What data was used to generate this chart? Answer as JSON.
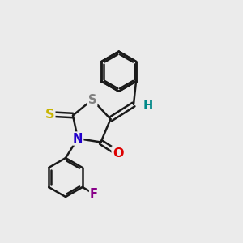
{
  "bg_color": "#ebebeb",
  "bond_color": "#1a1a1a",
  "bond_width": 1.8,
  "dbo": 0.12,
  "atom_colors": {
    "S_thione": "#c8b400",
    "S_ring": "#808080",
    "N": "#2200cc",
    "O": "#dd0000",
    "F": "#880088",
    "H": "#008888"
  },
  "font_size": 10.5
}
